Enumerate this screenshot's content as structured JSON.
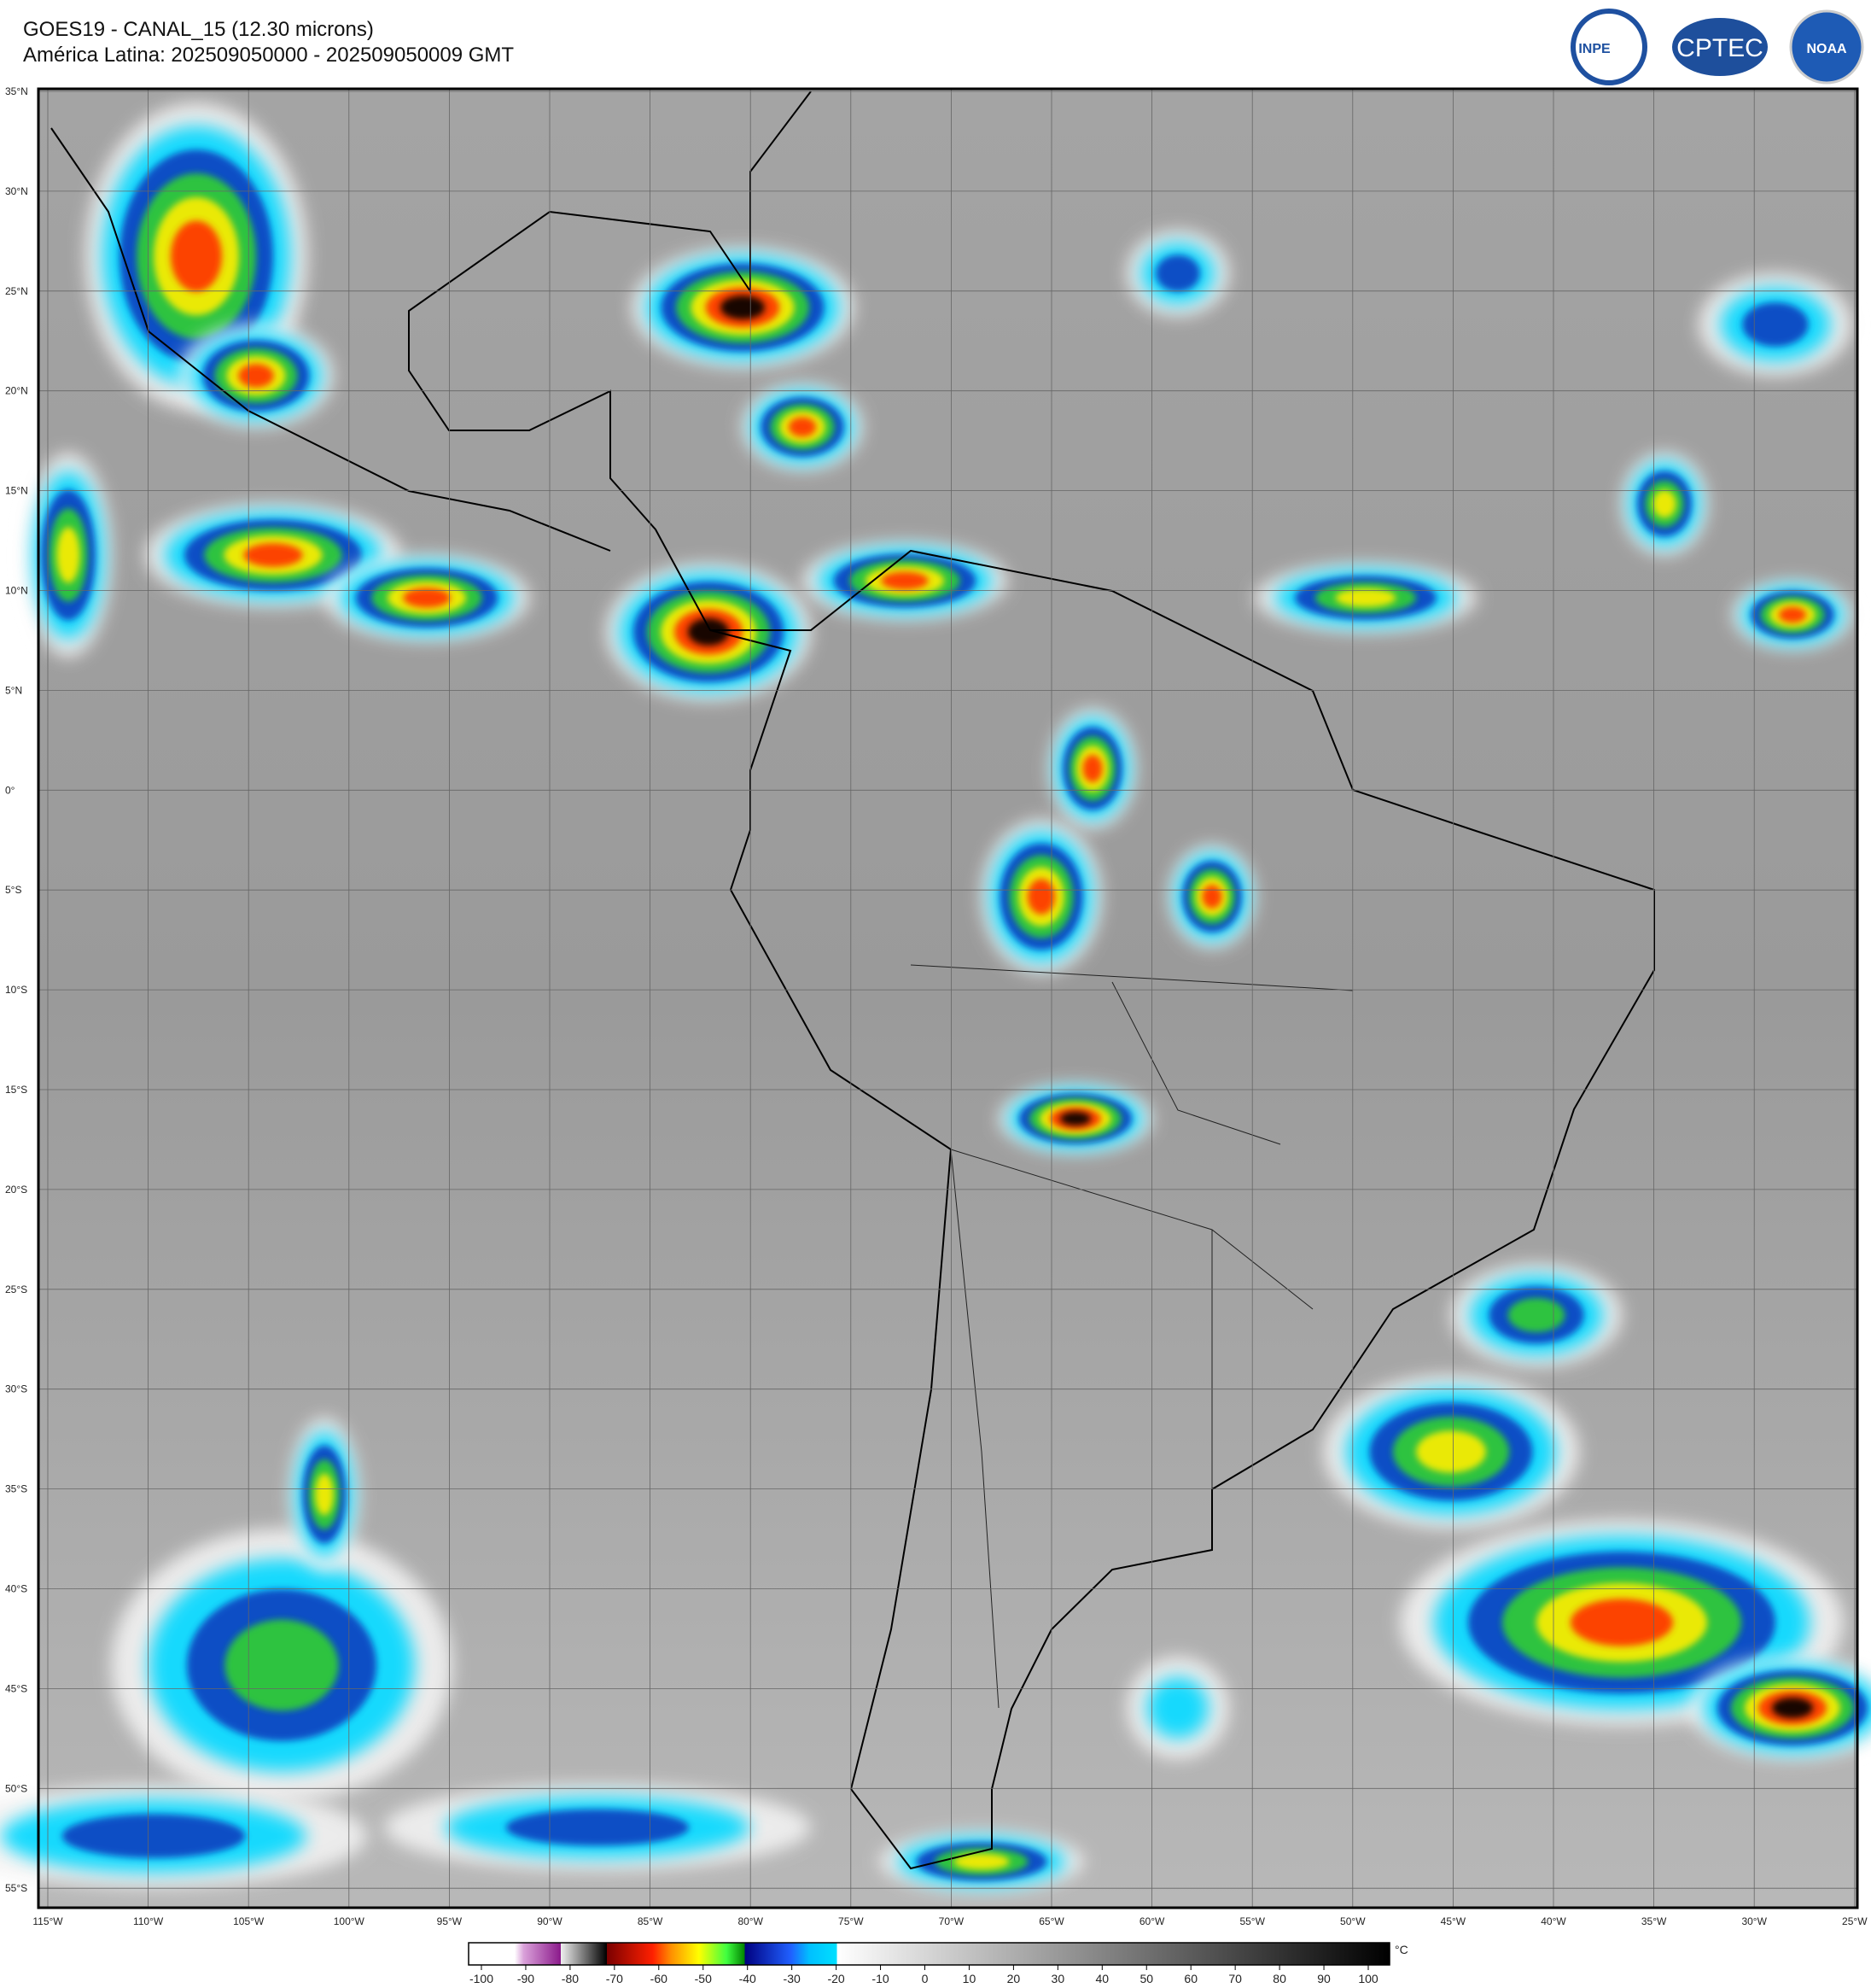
{
  "header": {
    "title": "GOES19 - CANAL_15 (12.30 microns)",
    "subtitle": "América Latina: 202509050000 - 202509050009 GMT",
    "logos": [
      "INPE",
      "CPTEC",
      "NOAA"
    ]
  },
  "map": {
    "lat_labels": [
      "35°N",
      "30°N",
      "25°N",
      "20°N",
      "15°N",
      "10°N",
      "5°N",
      "0°",
      "5°S",
      "10°S",
      "15°S",
      "20°S",
      "25°S",
      "30°S",
      "35°S",
      "40°S",
      "45°S",
      "50°S",
      "55°S"
    ],
    "lon_labels": [
      "115°W",
      "110°W",
      "105°W",
      "100°W",
      "95°W",
      "90°W",
      "85°W",
      "80°W",
      "75°W",
      "70°W",
      "65°W",
      "60°W",
      "55°W",
      "50°W",
      "45°W",
      "40°W",
      "35°W",
      "30°W",
      "25°W"
    ]
  },
  "colorbar": {
    "unit": "°C",
    "ticks": [
      -100,
      -90,
      -80,
      -70,
      -60,
      -50,
      -40,
      -30,
      -20,
      -10,
      0,
      10,
      20,
      30,
      40,
      50,
      60,
      70,
      80,
      90,
      100
    ]
  }
}
